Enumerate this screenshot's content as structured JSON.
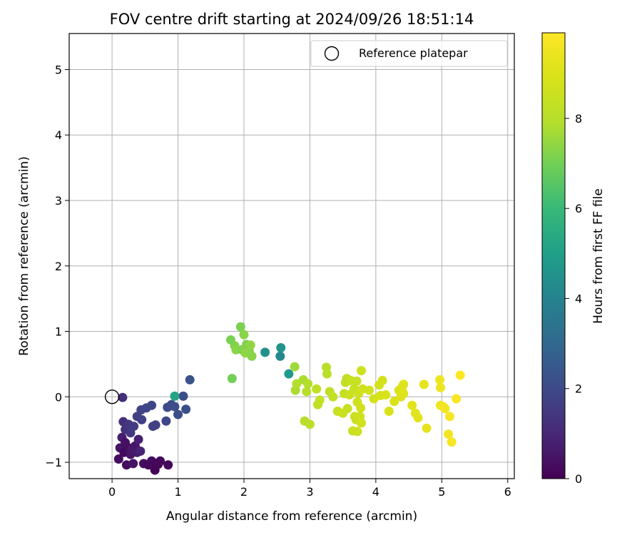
{
  "chart_data": {
    "type": "scatter",
    "title": "FOV centre drift starting at 2024/09/26 18:51:14",
    "xlabel": "Angular distance from reference (arcmin)",
    "ylabel": "Rotation from reference (arcmin)",
    "xlim": [
      -0.65,
      6.1
    ],
    "ylim": [
      -1.25,
      5.55
    ],
    "xticks": [
      0,
      1,
      2,
      3,
      4,
      5,
      6
    ],
    "yticks": [
      -1,
      0,
      1,
      2,
      3,
      4,
      5
    ],
    "grid": true,
    "legend": {
      "placement": "top-right",
      "entries": [
        "Reference platepar"
      ]
    },
    "colorbar": {
      "label": "Hours from first FF file",
      "min": 0,
      "max": 9.9,
      "ticks": [
        0,
        2,
        4,
        6,
        8
      ],
      "colormap": "viridis"
    },
    "reference_point": {
      "x": 0,
      "y": 0,
      "label": "Reference platepar"
    },
    "points": [
      {
        "x": 0.1,
        "y": -0.95,
        "c": 0.3
      },
      {
        "x": 0.12,
        "y": -0.78,
        "c": 0.5
      },
      {
        "x": 0.15,
        "y": -0.62,
        "c": 0.7
      },
      {
        "x": 0.18,
        "y": -0.85,
        "c": 0.2
      },
      {
        "x": 0.2,
        "y": -0.7,
        "c": 0.4
      },
      {
        "x": 0.22,
        "y": -1.04,
        "c": 0.25
      },
      {
        "x": 0.25,
        "y": -0.78,
        "c": 0.35
      },
      {
        "x": 0.28,
        "y": -0.88,
        "c": 0.5
      },
      {
        "x": 0.3,
        "y": -0.8,
        "c": 0.6
      },
      {
        "x": 0.32,
        "y": -1.02,
        "c": 0.45
      },
      {
        "x": 0.35,
        "y": -0.75,
        "c": 0.55
      },
      {
        "x": 0.38,
        "y": -0.85,
        "c": 0.65
      },
      {
        "x": 0.4,
        "y": -0.65,
        "c": 0.8
      },
      {
        "x": 0.43,
        "y": -0.83,
        "c": 0.9
      },
      {
        "x": 0.48,
        "y": -1.02,
        "c": 0.3
      },
      {
        "x": 0.55,
        "y": -1.04,
        "c": 0.2
      },
      {
        "x": 0.6,
        "y": -0.98,
        "c": 0.25
      },
      {
        "x": 0.62,
        "y": -1.05,
        "c": 0.15
      },
      {
        "x": 0.65,
        "y": -1.12,
        "c": 0.1
      },
      {
        "x": 0.7,
        "y": -1.03,
        "c": 0.15
      },
      {
        "x": 0.73,
        "y": -0.98,
        "c": 0.2
      },
      {
        "x": 0.85,
        "y": -1.04,
        "c": 0.15
      },
      {
        "x": 0.17,
        "y": -0.38,
        "c": 1.2
      },
      {
        "x": 0.2,
        "y": -0.5,
        "c": 1.3
      },
      {
        "x": 0.25,
        "y": -0.42,
        "c": 1.4
      },
      {
        "x": 0.28,
        "y": -0.55,
        "c": 1.5
      },
      {
        "x": 0.33,
        "y": -0.45,
        "c": 1.6
      },
      {
        "x": 0.38,
        "y": -0.3,
        "c": 1.7
      },
      {
        "x": 0.45,
        "y": -0.35,
        "c": 1.75
      },
      {
        "x": 0.44,
        "y": -0.2,
        "c": 1.8
      },
      {
        "x": 0.52,
        "y": -0.17,
        "c": 1.85
      },
      {
        "x": 0.6,
        "y": -0.13,
        "c": 1.9
      },
      {
        "x": 0.62,
        "y": -0.45,
        "c": 1.7
      },
      {
        "x": 0.66,
        "y": -0.43,
        "c": 1.75
      },
      {
        "x": 0.82,
        "y": -0.37,
        "c": 1.9
      },
      {
        "x": 0.84,
        "y": -0.16,
        "c": 2.0
      },
      {
        "x": 0.9,
        "y": -0.12,
        "c": 2.05
      },
      {
        "x": 0.95,
        "y": -0.15,
        "c": 2.1
      },
      {
        "x": 1.0,
        "y": -0.27,
        "c": 2.15
      },
      {
        "x": 1.08,
        "y": 0.01,
        "c": 2.1
      },
      {
        "x": 1.12,
        "y": -0.19,
        "c": 2.2
      },
      {
        "x": 1.18,
        "y": 0.26,
        "c": 2.3
      },
      {
        "x": 0.16,
        "y": -0.01,
        "c": 1.2
      },
      {
        "x": 0.95,
        "y": 0.01,
        "c": 5.2
      },
      {
        "x": 1.8,
        "y": 0.87,
        "c": 7.1
      },
      {
        "x": 1.82,
        "y": 0.28,
        "c": 7.0
      },
      {
        "x": 1.86,
        "y": 0.78,
        "c": 7.2
      },
      {
        "x": 1.88,
        "y": 0.72,
        "c": 7.3
      },
      {
        "x": 1.95,
        "y": 1.07,
        "c": 7.1
      },
      {
        "x": 1.97,
        "y": 0.72,
        "c": 7.2
      },
      {
        "x": 2.0,
        "y": 0.95,
        "c": 7.3
      },
      {
        "x": 2.02,
        "y": 0.67,
        "c": 7.4
      },
      {
        "x": 2.04,
        "y": 0.8,
        "c": 7.2
      },
      {
        "x": 2.08,
        "y": 0.7,
        "c": 7.3
      },
      {
        "x": 2.1,
        "y": 0.79,
        "c": 7.4
      },
      {
        "x": 2.12,
        "y": 0.62,
        "c": 7.3
      },
      {
        "x": 2.32,
        "y": 0.68,
        "c": 4.5
      },
      {
        "x": 2.55,
        "y": 0.62,
        "c": 4.2
      },
      {
        "x": 2.56,
        "y": 0.75,
        "c": 4.6
      },
      {
        "x": 2.68,
        "y": 0.35,
        "c": 4.8
      },
      {
        "x": 2.77,
        "y": 0.46,
        "c": 7.6
      },
      {
        "x": 2.78,
        "y": 0.1,
        "c": 7.8
      },
      {
        "x": 2.8,
        "y": 0.2,
        "c": 7.9
      },
      {
        "x": 2.9,
        "y": 0.26,
        "c": 7.8
      },
      {
        "x": 2.92,
        "y": -0.37,
        "c": 8.0
      },
      {
        "x": 2.95,
        "y": 0.08,
        "c": 8.0
      },
      {
        "x": 2.97,
        "y": 0.2,
        "c": 7.9
      },
      {
        "x": 3.0,
        "y": -0.42,
        "c": 8.1
      },
      {
        "x": 3.1,
        "y": 0.12,
        "c": 8.2
      },
      {
        "x": 3.12,
        "y": -0.12,
        "c": 8.2
      },
      {
        "x": 3.15,
        "y": -0.05,
        "c": 8.3
      },
      {
        "x": 3.25,
        "y": 0.45,
        "c": 8.0
      },
      {
        "x": 3.26,
        "y": 0.35,
        "c": 8.1
      },
      {
        "x": 3.3,
        "y": 0.08,
        "c": 8.2
      },
      {
        "x": 3.35,
        "y": 0.0,
        "c": 8.3
      },
      {
        "x": 3.42,
        "y": -0.22,
        "c": 8.4
      },
      {
        "x": 3.5,
        "y": -0.25,
        "c": 8.5
      },
      {
        "x": 3.52,
        "y": 0.05,
        "c": 8.3
      },
      {
        "x": 3.54,
        "y": 0.22,
        "c": 8.3
      },
      {
        "x": 3.56,
        "y": 0.28,
        "c": 8.2
      },
      {
        "x": 3.57,
        "y": -0.18,
        "c": 8.4
      },
      {
        "x": 3.6,
        "y": 0.03,
        "c": 8.5
      },
      {
        "x": 3.62,
        "y": 0.25,
        "c": 8.4
      },
      {
        "x": 3.65,
        "y": -0.52,
        "c": 8.5
      },
      {
        "x": 3.67,
        "y": 0.12,
        "c": 8.4
      },
      {
        "x": 3.68,
        "y": -0.3,
        "c": 8.5
      },
      {
        "x": 3.7,
        "y": -0.35,
        "c": 8.5
      },
      {
        "x": 3.71,
        "y": 0.24,
        "c": 8.4
      },
      {
        "x": 3.72,
        "y": -0.08,
        "c": 8.6
      },
      {
        "x": 3.72,
        "y": -0.53,
        "c": 8.6
      },
      {
        "x": 3.74,
        "y": 0.05,
        "c": 8.6
      },
      {
        "x": 3.76,
        "y": -0.3,
        "c": 8.6
      },
      {
        "x": 3.77,
        "y": -0.17,
        "c": 8.7
      },
      {
        "x": 3.78,
        "y": -0.4,
        "c": 8.7
      },
      {
        "x": 3.78,
        "y": 0.4,
        "c": 8.6
      },
      {
        "x": 3.8,
        "y": 0.12,
        "c": 8.7
      },
      {
        "x": 3.9,
        "y": 0.1,
        "c": 8.7
      },
      {
        "x": 3.97,
        "y": -0.03,
        "c": 8.8
      },
      {
        "x": 4.05,
        "y": 0.18,
        "c": 8.8
      },
      {
        "x": 4.07,
        "y": 0.02,
        "c": 8.9
      },
      {
        "x": 4.1,
        "y": 0.25,
        "c": 8.8
      },
      {
        "x": 4.15,
        "y": 0.03,
        "c": 8.9
      },
      {
        "x": 4.2,
        "y": -0.22,
        "c": 8.9
      },
      {
        "x": 4.28,
        "y": -0.07,
        "c": 9.0
      },
      {
        "x": 4.35,
        "y": 0.1,
        "c": 9.0
      },
      {
        "x": 4.38,
        "y": 0.0,
        "c": 9.0
      },
      {
        "x": 4.4,
        "y": 0.15,
        "c": 9.0
      },
      {
        "x": 4.42,
        "y": 0.05,
        "c": 9.1
      },
      {
        "x": 4.42,
        "y": 0.19,
        "c": 9.1
      },
      {
        "x": 4.55,
        "y": -0.13,
        "c": 9.2
      },
      {
        "x": 4.6,
        "y": -0.25,
        "c": 9.2
      },
      {
        "x": 4.64,
        "y": -0.32,
        "c": 9.2
      },
      {
        "x": 4.73,
        "y": 0.19,
        "c": 9.3
      },
      {
        "x": 4.77,
        "y": -0.48,
        "c": 9.3
      },
      {
        "x": 4.97,
        "y": 0.26,
        "c": 9.5
      },
      {
        "x": 4.98,
        "y": 0.14,
        "c": 9.5
      },
      {
        "x": 4.98,
        "y": -0.13,
        "c": 9.5
      },
      {
        "x": 5.02,
        "y": -0.15,
        "c": 9.6
      },
      {
        "x": 5.05,
        "y": -0.18,
        "c": 9.6
      },
      {
        "x": 5.1,
        "y": -0.57,
        "c": 9.6
      },
      {
        "x": 5.12,
        "y": -0.3,
        "c": 9.7
      },
      {
        "x": 5.15,
        "y": -0.69,
        "c": 9.7
      },
      {
        "x": 5.22,
        "y": -0.03,
        "c": 9.8
      },
      {
        "x": 5.28,
        "y": 0.33,
        "c": 9.9
      }
    ]
  }
}
